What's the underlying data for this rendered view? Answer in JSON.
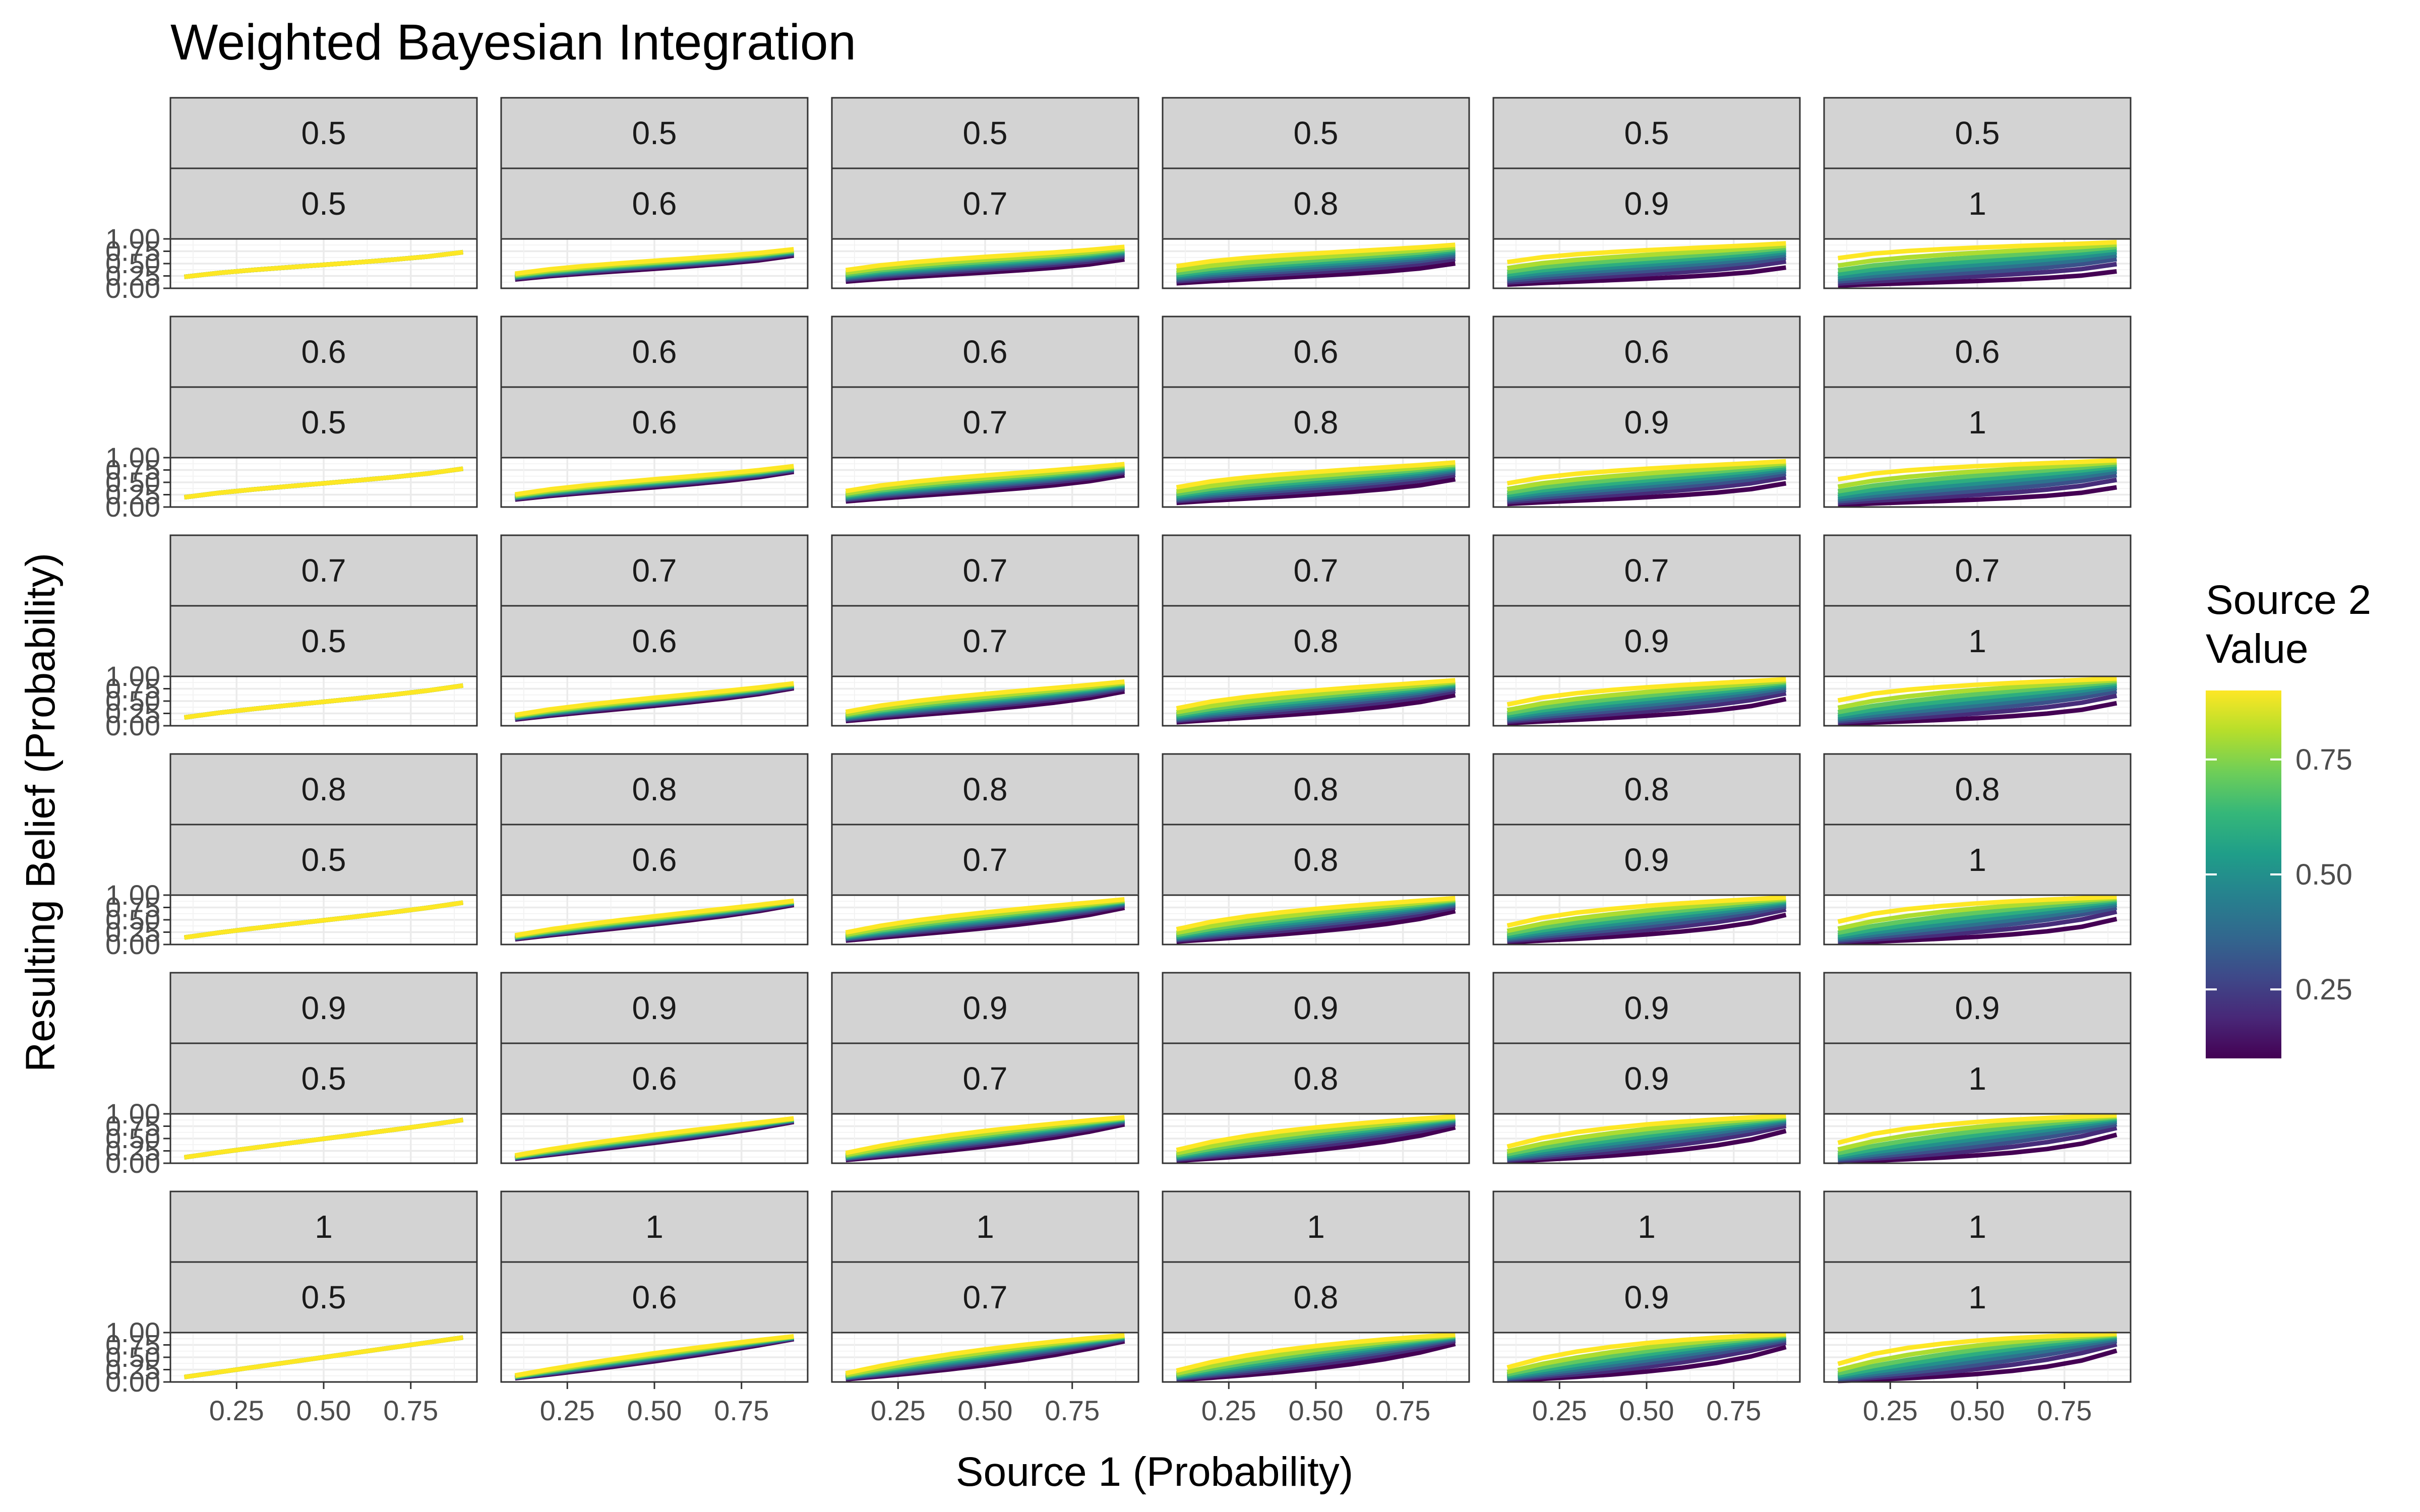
{
  "chart_data": {
    "type": "line",
    "title": "Weighted Bayesian Integration",
    "xlabel": "Source 1 (Probability)",
    "ylabel": "Resulting Belief (Probability)",
    "x": [
      0.1,
      0.2,
      0.3,
      0.4,
      0.5,
      0.6,
      0.7,
      0.8,
      0.9
    ],
    "xlim": [
      0.06,
      0.94
    ],
    "ylim": [
      0.0,
      1.0
    ],
    "x_ticks": [
      "0.25",
      "0.50",
      "0.75"
    ],
    "y_ticks": [
      "0.00",
      "0.25",
      "0.50",
      "0.75",
      "1.00"
    ],
    "facet_rows": [
      "0.5",
      "0.6",
      "0.7",
      "0.8",
      "0.9",
      "1"
    ],
    "facet_cols": [
      "0.5",
      "0.6",
      "0.7",
      "0.8",
      "0.9",
      "1"
    ],
    "color_variable": "Source 2 Value",
    "source2_values": [
      0.1,
      0.2,
      0.3,
      0.4,
      0.5,
      0.6,
      0.7,
      0.8,
      0.9
    ],
    "colorbar": {
      "title_line1": "Source 2",
      "title_line2": "Value",
      "range": [
        0.1,
        0.9
      ],
      "ticks": [
        "0.25",
        "0.50",
        "0.75"
      ],
      "low_color": "#440154",
      "high_color": "#fde725"
    },
    "grid": true,
    "legend_position": "right"
  }
}
